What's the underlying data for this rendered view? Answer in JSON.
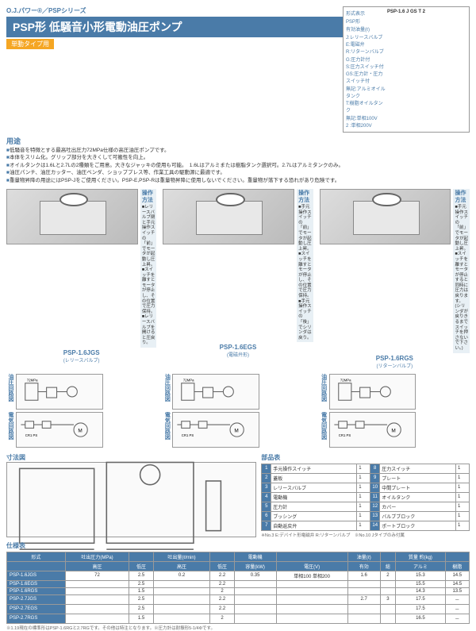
{
  "header": {
    "series": "O.J.パワー®／PSPシリーズ",
    "title": "PSP形 低騒音小形電動油圧ポンプ",
    "subtitle": "単動タイプ用"
  },
  "model": {
    "h": "形式表示",
    "code": "PSP-1.6 J GS T 2",
    "rows": [
      [
        "PSP形",
        ""
      ],
      [
        "有効油量(ℓ)",
        ""
      ],
      [
        "J:レリースバルブ",
        "E:電磁弁",
        "R:リターンバルブ"
      ],
      [
        "G:圧力計付",
        "S:圧力スイッチ付",
        "GS:圧力計・圧力スイッチ付"
      ],
      [
        "無記:アルミオイルタンク",
        "T:樹脂オイルタンク"
      ],
      [
        "無記:単相100V",
        "2 :単相200V"
      ]
    ]
  },
  "usage": {
    "h": "用途",
    "items": [
      "低騒音を特徴とする最高吐出圧力72MPa仕様の高圧油圧ポンプです。",
      "本体をスリム化。グリップ部分を大きくして可搬性を向上。",
      "オイルタンクは1.6Lと2.7Lの2種類をご用意。大きなジャッキの使用も可能。　1.6Lはアルミまたは樹脂タンク選択可。2.7Lはアルミタンクのみ。",
      "油圧パンチ、油圧カッター、油圧ベンダ、ショッププレス等、作業工具の駆動源に最適です。",
      "重量物昇降の用途にはPSP-Jをご使用ください。PSP-E,PSP-Rは重量物昇降に使用しないでください。重量物が落下する恐れがあり危険です。"
    ]
  },
  "products": [
    {
      "name": "PSP-1.6JGS",
      "sub": "(レリースバルブ)",
      "oph": "操作方法",
      "op": [
        "■レリースバルブ閉と手元操作スイッチの「前」でモータが起動し圧上昇。",
        "■スイッチを離すとモータが停止し、その位置で圧力保持。",
        "■レリースバルブを開けると圧戻り。"
      ]
    },
    {
      "name": "PSP-1.6EGS",
      "sub": "(電磁弁形)",
      "oph": "操作方法",
      "op": [
        "■手元操作スイッチの「前」でモータが起動し圧上昇。",
        "■スイッチを離すとモータが停止し、その位置で圧力保持。",
        "■手元操作スイッチの「後」でシリンダは戻り。"
      ]
    },
    {
      "name": "PSP-1.6RGS",
      "sub": "(リターンバルブ)",
      "oph": "操作方法",
      "op": [
        "■手元操作スイッチの「前」でモータが起動し圧上昇。",
        "■スイッチを離すとモータが停止すると同時に圧力は戻ります。",
        "(シリンダが戻りきるまでスイッチを押さないで下さい。)"
      ]
    }
  ],
  "diagh": {
    "hyd": "油圧回路図",
    "elec": "電気回路図"
  },
  "dim": {
    "h": "寸法図"
  },
  "parts": {
    "h": "部品表",
    "items": [
      [
        "1",
        "手元操作スイッチ",
        "1"
      ],
      [
        "2",
        "蓋板",
        "1"
      ],
      [
        "3",
        "レリースバルブ",
        "1"
      ],
      [
        "4",
        "電動機",
        "1"
      ],
      [
        "5",
        "圧力計",
        "1"
      ],
      [
        "6",
        "ブッシング",
        "1"
      ],
      [
        "7",
        "自動返戻弁",
        "1"
      ],
      [
        "8",
        "圧力スイッチ",
        "1"
      ],
      [
        "9",
        "プレート",
        "1"
      ],
      [
        "10",
        "中間プレート",
        "1"
      ],
      [
        "11",
        "オイルタンク",
        "1"
      ],
      [
        "12",
        "カバー",
        "1"
      ],
      [
        "13",
        "バルブブロック",
        "1"
      ],
      [
        "14",
        "ポートブロック",
        "1"
      ]
    ],
    "note": "※No.3 E:デバイト形電磁弁 R:リターンバルブ　※No.10 Jタイプのみ付属"
  },
  "spec": {
    "h": "仕様表",
    "cols1": [
      "形式",
      "吐出圧力(MPa)",
      "",
      "吐出量(ℓ/min)",
      "",
      "電動機",
      "",
      "油量(ℓ)",
      "",
      "質量 約(kg)",
      ""
    ],
    "cols2": [
      "",
      "高圧",
      "低圧",
      "高圧",
      "低圧",
      "容量(kW)",
      "電圧(V)",
      "有効",
      "総",
      "アルミ",
      "樹脂"
    ],
    "rows": [
      [
        "PSP-1.6JGS",
        "72",
        "2.5",
        "0.2",
        "2.2",
        "0.35",
        "単相100 単相200",
        "1.6",
        "2",
        "15.3",
        "14.5"
      ],
      [
        "PSP-1.6EGS",
        "",
        "2.5",
        "",
        "2.2",
        "",
        "",
        "",
        "",
        "15.5",
        "14.5"
      ],
      [
        "PSP-1.6RGS",
        "",
        "1.5",
        "",
        "2",
        "",
        "",
        "",
        "",
        "14.3",
        "13.5"
      ],
      [
        "PSP-2.7JGS",
        "",
        "2.5",
        "",
        "2.2",
        "",
        "",
        "2.7",
        "3",
        "17.5",
        "－"
      ],
      [
        "PSP-2.7EGS",
        "",
        "2.5",
        "",
        "2.2",
        "",
        "",
        "",
        "",
        "17.5",
        "－"
      ],
      [
        "PSP-2.7RGS",
        "",
        "1.5",
        "",
        "2",
        "",
        "",
        "",
        "",
        "16.5",
        "－"
      ]
    ],
    "note": "※1.19現在の標準形はPSP-1.6RGと2.7RGです。その他は特注となります。※圧力計は耐振形5-1/4Φです。"
  }
}
